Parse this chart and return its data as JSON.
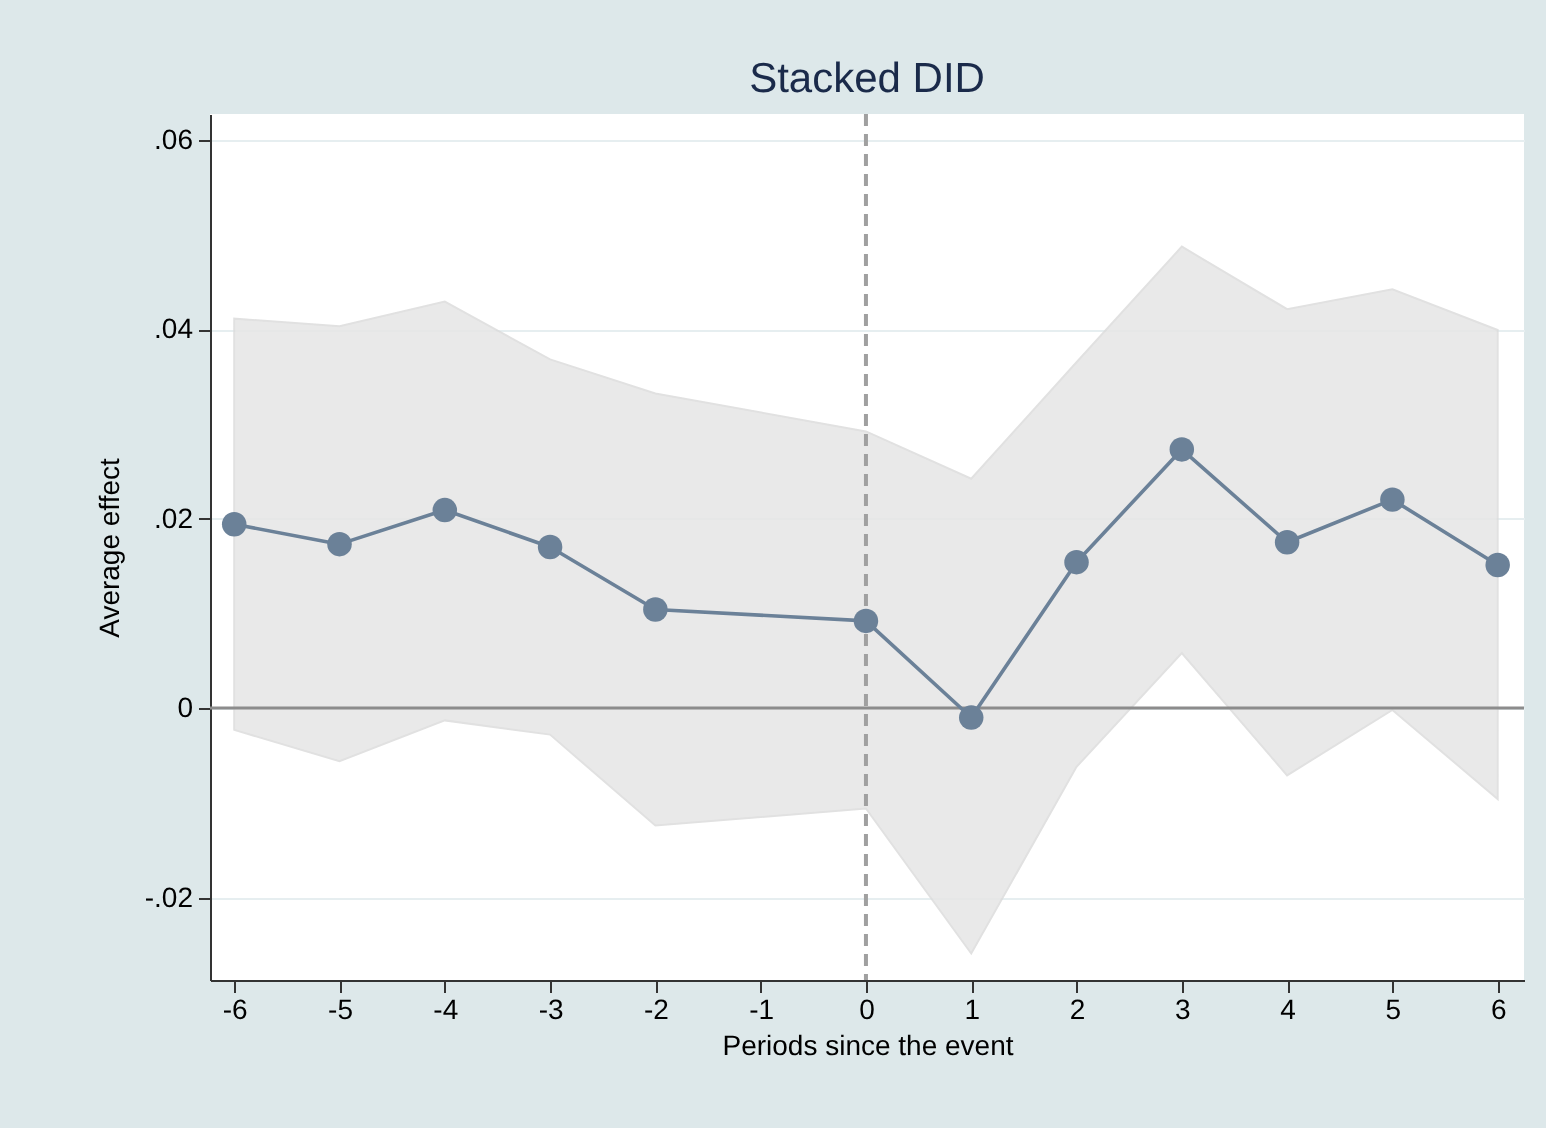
{
  "chart_data": {
    "type": "line",
    "title": "Stacked DID",
    "xlabel": "Periods since the event",
    "ylabel": "Average effect",
    "xlim": [
      -6.23,
      6.25
    ],
    "xticks": [
      -6,
      -5,
      -4,
      -3,
      -2,
      -1,
      0,
      1,
      2,
      3,
      4,
      5,
      6
    ],
    "ylim": [
      -0.0287,
      0.0627
    ],
    "yticks": [
      {
        "value": -0.02,
        "label": "-.02"
      },
      0,
      {
        "value": 0.02,
        "label": ".02"
      },
      {
        "value": 0.04,
        "label": ".04"
      },
      {
        "value": 0.06,
        "label": ".06"
      }
    ],
    "grid": "y",
    "marker": "circle",
    "line_style": "solid",
    "series": [
      {
        "color": "#6b8198",
        "x": [
          -6,
          -5,
          -4,
          -3,
          -2,
          0,
          1,
          2,
          3,
          4,
          5,
          6
        ],
        "values": [
          0.0194,
          0.0173,
          0.0209,
          0.017,
          0.0104,
          0.0092,
          -0.001,
          0.0154,
          0.0273,
          0.0175,
          0.022,
          0.0151
        ],
        "lower": [
          -0.0023,
          -0.0056,
          -0.0013,
          -0.0028,
          -0.0124,
          -0.0106,
          -0.0259,
          -0.0062,
          0.0058,
          -0.0071,
          -0.0002,
          -0.0096
        ],
        "upper": [
          0.0411,
          0.0403,
          0.0429,
          0.0368,
          0.0332,
          0.0292,
          0.0242,
          0.0365,
          0.0487,
          0.0421,
          0.0442,
          0.0399
        ]
      }
    ],
    "ref_lines": [
      {
        "axis": "y",
        "value": 0,
        "color": "#8c8c8c",
        "line_style": "solid"
      },
      {
        "axis": "x",
        "value": 0,
        "color": "#a0a0a0",
        "line_style": "dashed"
      }
    ]
  }
}
